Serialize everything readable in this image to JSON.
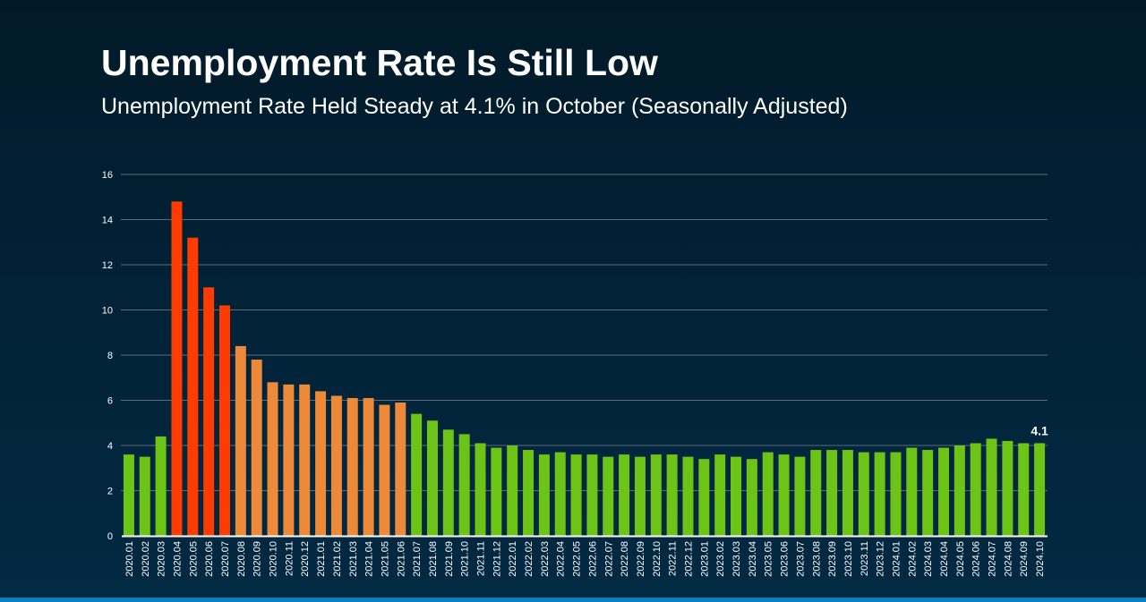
{
  "header": {
    "title": "Unemployment Rate Is Still Low",
    "subtitle": "Unemployment Rate Held Steady at 4.1% in October (Seasonally Adjusted)"
  },
  "colors": {
    "normal": "#6cc417",
    "peak": "#ff3c00",
    "elevated": "#ec8a3a",
    "gridline": "#5f6b74",
    "axis": "#ffffff",
    "accent_stripe": "#0a7fc6"
  },
  "chart_data": {
    "type": "bar",
    "title": "Unemployment Rate Is Still Low",
    "subtitle": "Unemployment Rate Held Steady at 4.1% in October (Seasonally Adjusted)",
    "xlabel": "",
    "ylabel": "",
    "ylim": [
      0,
      16
    ],
    "yticks": [
      0,
      2,
      4,
      6,
      8,
      10,
      12,
      14,
      16
    ],
    "grid": true,
    "legend": "none",
    "categories": [
      "2020.01",
      "2020.02",
      "2020.03",
      "2020.04",
      "2020.05",
      "2020.06",
      "2020.07",
      "2020.08",
      "2020.09",
      "2020.10",
      "2020.11",
      "2020.12",
      "2021.01",
      "2021.02",
      "2021.03",
      "2021.04",
      "2021.05",
      "2021.06",
      "2021.07",
      "2021.08",
      "2021.09",
      "2021.10",
      "2021.11",
      "2021.12",
      "2022.01",
      "2022.02",
      "2022.03",
      "2022.04",
      "2022.05",
      "2022.06",
      "2022.07",
      "2022.08",
      "2022.09",
      "2022.10",
      "2022.11",
      "2022.12",
      "2023.01",
      "2023.02",
      "2023.03",
      "2023.04",
      "2023.05",
      "2023.06",
      "2023.07",
      "2023.08",
      "2023.09",
      "2023.10",
      "2023.11",
      "2023.12",
      "2024.01",
      "2024.02",
      "2024.03",
      "2024.04",
      "2024.05",
      "2024.06",
      "2024.07",
      "2024.08",
      "2024.09",
      "2024.10"
    ],
    "values": [
      3.6,
      3.5,
      4.4,
      14.8,
      13.2,
      11.0,
      10.2,
      8.4,
      7.8,
      6.8,
      6.7,
      6.7,
      6.4,
      6.2,
      6.1,
      6.1,
      5.8,
      5.9,
      5.4,
      5.1,
      4.7,
      4.5,
      4.1,
      3.9,
      4.0,
      3.8,
      3.6,
      3.7,
      3.6,
      3.6,
      3.5,
      3.6,
      3.5,
      3.6,
      3.6,
      3.5,
      3.4,
      3.6,
      3.5,
      3.4,
      3.7,
      3.6,
      3.5,
      3.8,
      3.8,
      3.8,
      3.7,
      3.7,
      3.7,
      3.9,
      3.8,
      3.9,
      4.0,
      4.1,
      4.3,
      4.2,
      4.1,
      4.1
    ],
    "bar_color_groups": [
      "normal",
      "normal",
      "normal",
      "peak",
      "peak",
      "peak",
      "peak",
      "elevated",
      "elevated",
      "elevated",
      "elevated",
      "elevated",
      "elevated",
      "elevated",
      "elevated",
      "elevated",
      "elevated",
      "elevated",
      "normal",
      "normal",
      "normal",
      "normal",
      "normal",
      "normal",
      "normal",
      "normal",
      "normal",
      "normal",
      "normal",
      "normal",
      "normal",
      "normal",
      "normal",
      "normal",
      "normal",
      "normal",
      "normal",
      "normal",
      "normal",
      "normal",
      "normal",
      "normal",
      "normal",
      "normal",
      "normal",
      "normal",
      "normal",
      "normal",
      "normal",
      "normal",
      "normal",
      "normal",
      "normal",
      "normal",
      "normal",
      "normal",
      "normal",
      "normal"
    ],
    "annotations": [
      {
        "category": "2024.10",
        "text": "4.1"
      }
    ]
  }
}
